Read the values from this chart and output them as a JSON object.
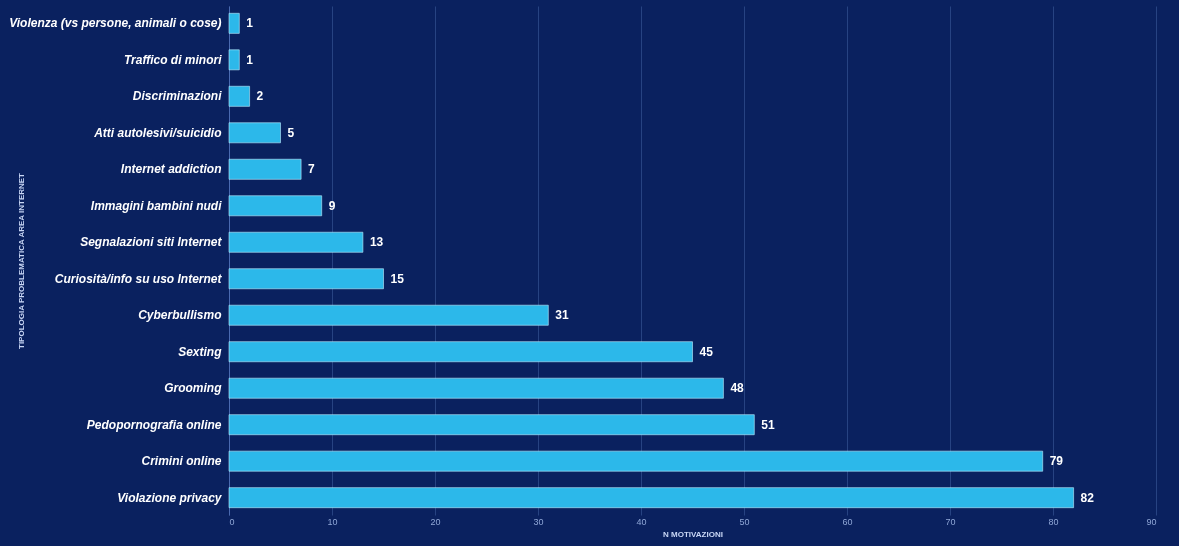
{
  "chart_data": {
    "type": "bar",
    "orientation": "horizontal",
    "xlabel": "N MOTIVAZIONI",
    "ylabel": "TIPOLOGIA PROBLEMATICA AREA INTERNET",
    "categories": [
      "Violenza (vs persone, animali o cose)",
      "Traffico di minori",
      "Discriminazioni",
      "Atti autolesivi/suicidio",
      "Internet addiction",
      "Immagini bambini nudi",
      "Segnalazioni siti Internet",
      "Curiosità/info su uso Internet",
      "Cyberbullismo",
      "Sexting",
      "Grooming",
      "Pedopornografia online",
      "Crimini online",
      "Violazione privacy"
    ],
    "values": [
      1,
      1,
      2,
      5,
      7,
      9,
      13,
      15,
      31,
      45,
      48,
      51,
      79,
      82
    ],
    "color": "#2cb8ea",
    "data_labels": true,
    "xlim": [
      0,
      90
    ],
    "xticks": [
      0,
      10,
      20,
      30,
      40,
      50,
      60,
      70,
      80,
      90
    ],
    "grid": "x"
  }
}
